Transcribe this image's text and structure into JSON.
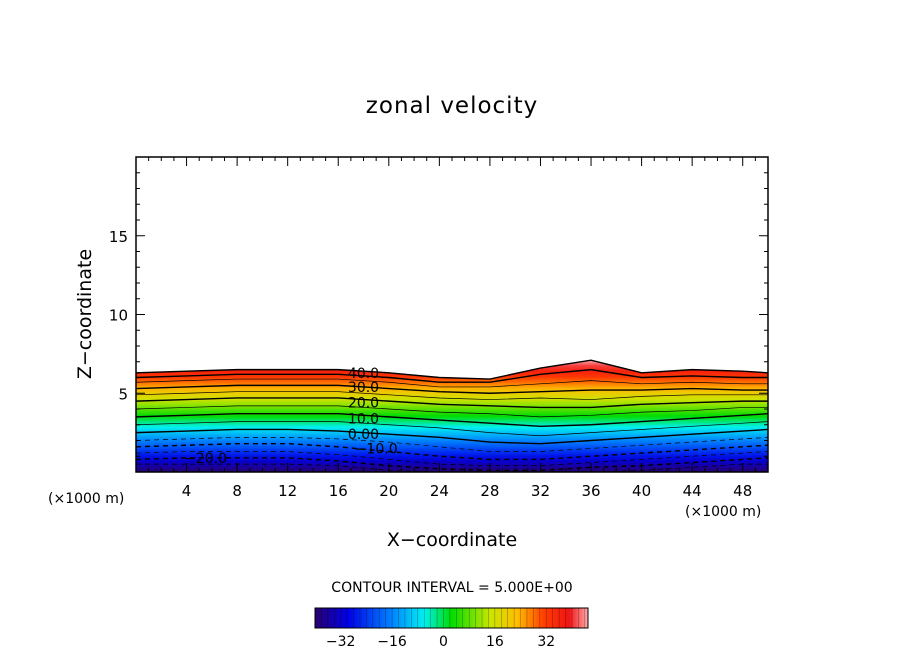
{
  "chart_data": {
    "type": "contour",
    "title": "zonal velocity",
    "xlabel": "X−coordinate",
    "ylabel": "Z−coordinate",
    "x_unit_left": "(×1000 m)",
    "x_unit_right": "(×1000 m)",
    "xlim": [
      0,
      50
    ],
    "ylim": [
      0,
      20
    ],
    "x_ticks": [
      4,
      8,
      12,
      16,
      20,
      24,
      28,
      32,
      36,
      40,
      44,
      48
    ],
    "y_ticks": [
      5,
      10,
      15
    ],
    "colorbar": {
      "label": "CONTOUR INTERVAL = 5.000E+00",
      "range": [
        -40,
        45
      ],
      "interval": 5,
      "ticks": [
        -32,
        -16,
        0,
        16,
        32
      ]
    },
    "contour_labels": [
      {
        "text": "40.0",
        "value": 40
      },
      {
        "text": "30.0",
        "value": 30
      },
      {
        "text": "20.0",
        "value": 20
      },
      {
        "text": "10.0",
        "value": 10
      },
      {
        "text": "0.00",
        "value": 0
      },
      {
        "text": "−10.0",
        "value": -10
      },
      {
        "text": "−20.0",
        "value": -20
      }
    ],
    "field_top": {
      "x": [
        0,
        4,
        8,
        12,
        16,
        20,
        24,
        28,
        32,
        36,
        40,
        44,
        48,
        50
      ],
      "z": [
        6.3,
        6.4,
        6.5,
        6.5,
        6.5,
        6.3,
        6.0,
        5.9,
        6.6,
        7.1,
        6.3,
        6.5,
        6.4,
        6.3
      ]
    },
    "value_bottom": -40,
    "value_top": 45,
    "x_samples": [
      0,
      4,
      8,
      12,
      16,
      20,
      24,
      28,
      32,
      36,
      40,
      44,
      48,
      50
    ],
    "contour_levels": [
      {
        "value": 40,
        "z": [
          6.0,
          6.1,
          6.2,
          6.2,
          6.2,
          6.0,
          5.7,
          5.7,
          6.2,
          6.5,
          6.0,
          6.1,
          6.0,
          6.0
        ]
      },
      {
        "value": 35,
        "z": [
          5.7,
          5.8,
          5.9,
          5.9,
          5.9,
          5.7,
          5.4,
          5.4,
          5.6,
          5.8,
          5.6,
          5.7,
          5.6,
          5.6
        ]
      },
      {
        "value": 30,
        "z": [
          5.3,
          5.4,
          5.5,
          5.5,
          5.5,
          5.3,
          5.1,
          5.0,
          5.1,
          5.2,
          5.2,
          5.3,
          5.2,
          5.2
        ]
      },
      {
        "value": 25,
        "z": [
          4.9,
          5.0,
          5.1,
          5.1,
          5.1,
          4.9,
          4.7,
          4.6,
          4.7,
          4.6,
          4.8,
          4.9,
          4.9,
          4.9
        ]
      },
      {
        "value": 20,
        "z": [
          4.5,
          4.6,
          4.7,
          4.7,
          4.7,
          4.5,
          4.3,
          4.2,
          4.1,
          4.1,
          4.3,
          4.4,
          4.5,
          4.5
        ]
      },
      {
        "value": 15,
        "z": [
          4.0,
          4.1,
          4.2,
          4.2,
          4.2,
          4.0,
          3.8,
          3.7,
          3.5,
          3.6,
          3.8,
          3.9,
          4.1,
          4.1
        ]
      },
      {
        "value": 10,
        "z": [
          3.5,
          3.6,
          3.7,
          3.7,
          3.7,
          3.5,
          3.3,
          3.1,
          2.9,
          3.0,
          3.2,
          3.4,
          3.6,
          3.7
        ]
      },
      {
        "value": 5,
        "z": [
          3.0,
          3.1,
          3.2,
          3.2,
          3.2,
          3.0,
          2.8,
          2.5,
          2.3,
          2.5,
          2.7,
          2.9,
          3.1,
          3.2
        ]
      },
      {
        "value": 0,
        "z": [
          2.5,
          2.6,
          2.7,
          2.7,
          2.6,
          2.4,
          2.2,
          1.9,
          1.8,
          2.0,
          2.2,
          2.4,
          2.6,
          2.7
        ]
      },
      {
        "value": -5,
        "z": [
          2.0,
          2.1,
          2.2,
          2.2,
          2.1,
          1.9,
          1.6,
          1.3,
          1.3,
          1.5,
          1.7,
          1.9,
          2.1,
          2.2
        ]
      },
      {
        "value": -10,
        "z": [
          1.6,
          1.7,
          1.8,
          1.8,
          1.6,
          1.3,
          1.0,
          0.8,
          0.8,
          1.0,
          1.2,
          1.4,
          1.6,
          1.7
        ]
      },
      {
        "value": -15,
        "z": [
          1.2,
          1.3,
          1.3,
          1.3,
          1.1,
          0.8,
          0.5,
          0.4,
          0.4,
          0.6,
          0.8,
          1.0,
          1.2,
          1.3
        ]
      },
      {
        "value": -20,
        "z": [
          0.8,
          0.9,
          0.9,
          0.9,
          0.7,
          0.4,
          0.2,
          0.1,
          0.1,
          0.3,
          0.4,
          0.6,
          0.8,
          0.9
        ]
      },
      {
        "value": -25,
        "z": [
          0.5,
          0.5,
          0.5,
          0.5,
          0.4,
          0.1,
          0,
          0,
          0,
          0,
          0.1,
          0.3,
          0.5,
          0.5
        ]
      }
    ]
  }
}
